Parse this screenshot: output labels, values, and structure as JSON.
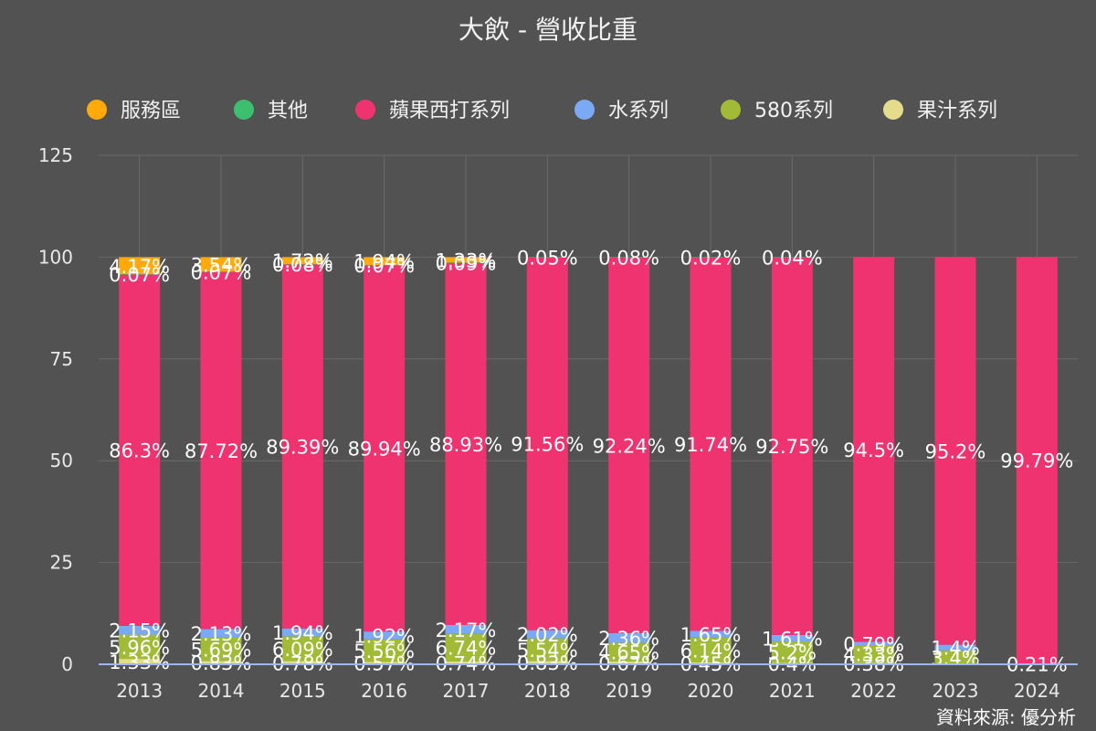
{
  "chart_data": {
    "type": "bar",
    "stacked": true,
    "title": "大飲 - 營收比重",
    "categories": [
      "2013",
      "2014",
      "2015",
      "2016",
      "2017",
      "2018",
      "2019",
      "2020",
      "2021",
      "2022",
      "2023",
      "2024"
    ],
    "ylim": [
      0,
      125
    ],
    "yticks": [
      0,
      25,
      50,
      75,
      100,
      125
    ],
    "grid": true,
    "legend_position": "top",
    "series": [
      {
        "name": "果汁系列",
        "color": "#e3dc8c",
        "values": [
          1.33,
          0.83,
          0.78,
          0.57,
          0.74,
          0.83,
          0.67,
          0.45,
          0.4,
          0.38,
          null,
          null
        ],
        "labels": [
          "1.33%",
          "0.83%",
          "0.78%",
          "0.57%",
          "0.74%",
          "0.83%",
          "0.67%",
          "0.45%",
          "0.4%",
          "0.38%",
          "",
          ""
        ]
      },
      {
        "name": "580系列",
        "color": "#a2bb36",
        "values": [
          5.96,
          5.69,
          6.09,
          5.56,
          6.74,
          5.54,
          4.65,
          6.14,
          5.2,
          4.33,
          3.4,
          0.21
        ],
        "labels": [
          "5.96%",
          "5.69%",
          "6.09%",
          "5.56%",
          "6.74%",
          "5.54%",
          "4.65%",
          "6.14%",
          "5.2%",
          "4.33%",
          "3.4%",
          "0.21%"
        ]
      },
      {
        "name": "水系列",
        "color": "#7ca9f4",
        "values": [
          2.15,
          2.13,
          1.94,
          1.92,
          2.17,
          2.02,
          2.36,
          1.65,
          1.61,
          0.79,
          1.4,
          null
        ],
        "labels": [
          "2.15%",
          "2.13%",
          "1.94%",
          "1.92%",
          "2.17%",
          "2.02%",
          "2.36%",
          "1.65%",
          "1.61%",
          "0.79%",
          "1.4%",
          ""
        ]
      },
      {
        "name": "蘋果西打系列",
        "color": "#ee3370",
        "values": [
          86.3,
          87.72,
          89.39,
          89.94,
          88.93,
          91.56,
          92.24,
          91.74,
          92.75,
          94.5,
          95.2,
          99.79
        ],
        "labels": [
          "86.3%",
          "87.72%",
          "89.39%",
          "89.94%",
          "88.93%",
          "91.56%",
          "92.24%",
          "91.74%",
          "92.75%",
          "94.5%",
          "95.2%",
          "99.79%"
        ]
      },
      {
        "name": "其他",
        "color": "#3cbf6e",
        "values": [
          0.07,
          0.07,
          0.08,
          0.07,
          0.09,
          0.05,
          0.08,
          0.02,
          0.04,
          null,
          null,
          null
        ],
        "labels": [
          "0.07%",
          "0.07%",
          "0.08%",
          "0.07%",
          "0.09%",
          "0.05%",
          "0.08%",
          "0.02%",
          "0.04%",
          "",
          "",
          ""
        ]
      },
      {
        "name": "服務區",
        "color": "#ffa90a",
        "values": [
          4.17,
          3.54,
          1.72,
          1.94,
          1.33,
          null,
          null,
          null,
          null,
          null,
          null,
          null
        ],
        "labels": [
          "4.17%",
          "3.54%",
          "1.72%",
          "1.94%",
          "1.33%",
          "",
          "",
          "",
          "",
          "",
          "",
          ""
        ]
      }
    ],
    "legend_order": [
      "服務區",
      "其他",
      "蘋果西打系列",
      "水系列",
      "580系列",
      "果汁系列"
    ]
  },
  "source_text": "資料來源: 優分析"
}
